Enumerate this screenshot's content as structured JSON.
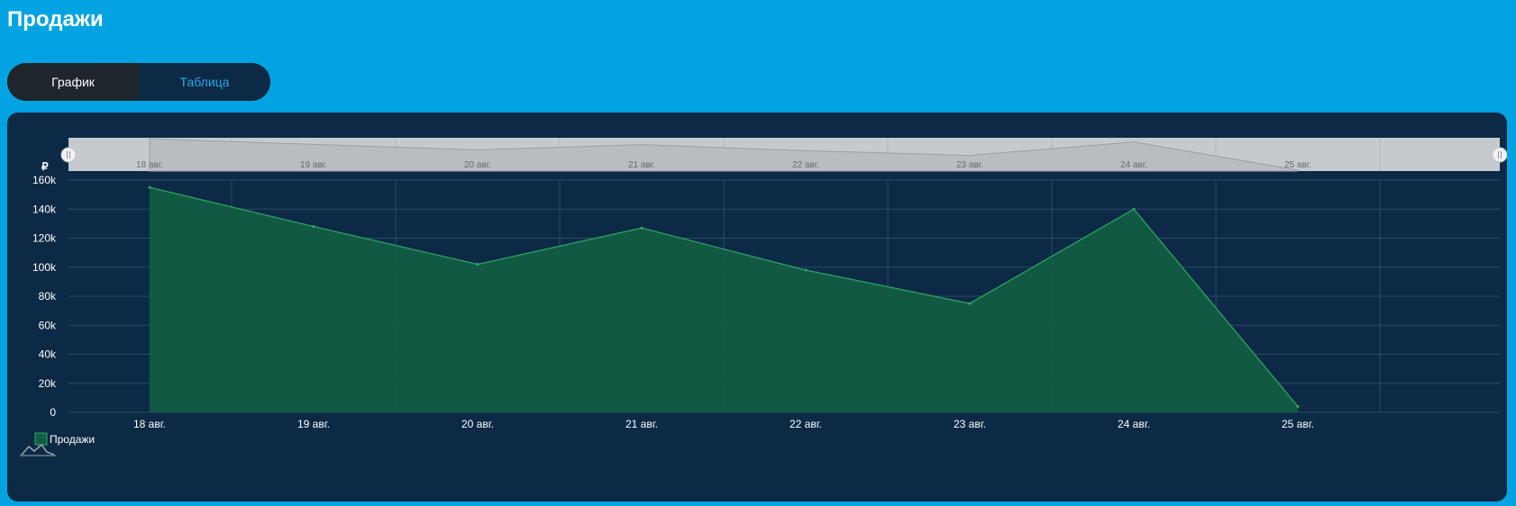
{
  "header": {
    "title": "Продажи"
  },
  "view_toggle": {
    "chart_label": "График",
    "table_label": "Таблица",
    "selected": "chart"
  },
  "colors": {
    "background": "#01a3e0",
    "card": "#0c2a45",
    "series_fill": "#135c45",
    "series_line": "#2eaa63",
    "toggle_active": "#1f252d",
    "toggle_inactive_text": "#2fa6e6"
  },
  "chart_data": {
    "type": "area",
    "ylabel": "₽",
    "categories": [
      "18 авг.",
      "19 авг.",
      "20 авг.",
      "21 авг.",
      "22 авг.",
      "23 авг.",
      "24 авг.",
      "25 авг."
    ],
    "y_ticks": [
      "0",
      "20k",
      "40k",
      "60k",
      "80k",
      "100k",
      "120k",
      "140k",
      "160k"
    ],
    "ylim": [
      0,
      160000
    ],
    "series": [
      {
        "name": "Продажи",
        "values": [
          155000,
          128000,
          102000,
          127000,
          98000,
          75000,
          140000,
          4000
        ]
      }
    ],
    "grid": true,
    "legend": "bottom-left",
    "navigator": true
  },
  "legend": {
    "label": "Продажи"
  }
}
